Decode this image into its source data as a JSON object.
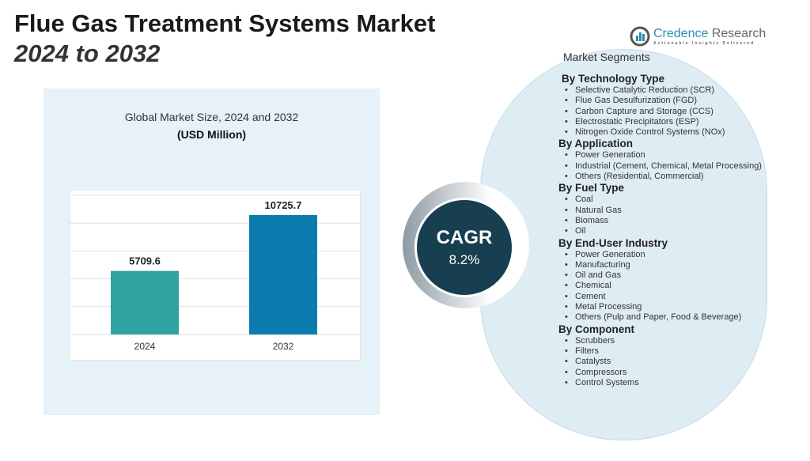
{
  "header": {
    "title": "Flue Gas Treatment Systems Market",
    "subtitle": "2024 to 2032"
  },
  "logo": {
    "name_part1": "Credence",
    "name_part2": " Research",
    "tagline": "Actionable Insights Delivered"
  },
  "chart_data": {
    "type": "bar",
    "title": "Global Market Size, 2024 and 2032",
    "unit_label": "(USD Million)",
    "categories": [
      "2024",
      "2032"
    ],
    "values": [
      5709.6,
      10725.7
    ],
    "colors": [
      "#2fa3a0",
      "#0b7bb0"
    ],
    "ylim": [
      0,
      12500
    ],
    "grid": true
  },
  "cagr": {
    "label": "CAGR",
    "value": "8.2%"
  },
  "segments": {
    "title": "Market Segments",
    "groups": [
      {
        "heading": "By Technology Type",
        "items": [
          "Selective Catalytic Reduction (SCR)",
          "Flue Gas Desulfurization (FGD)",
          "Carbon Capture and Storage (CCS)",
          "Electrostatic Precipitators (ESP)",
          "Nitrogen Oxide Control Systems (NOx)"
        ]
      },
      {
        "heading": "By Application",
        "items": [
          "Power Generation",
          "Industrial (Cement, Chemical, Metal Processing)",
          "Others (Residential, Commercial)"
        ]
      },
      {
        "heading": "By Fuel Type",
        "items": [
          "Coal",
          "Natural Gas",
          "Biomass",
          "Oil"
        ]
      },
      {
        "heading": "By End-User Industry",
        "items": [
          "Power Generation",
          "Manufacturing",
          "Oil and Gas",
          "Chemical",
          "Cement",
          "Metal Processing",
          "Others (Pulp and Paper, Food & Beverage)"
        ]
      },
      {
        "heading": "By Component",
        "items": [
          "Scrubbers",
          "Filters",
          "Catalysts",
          "Compressors",
          "Control Systems"
        ]
      }
    ]
  }
}
